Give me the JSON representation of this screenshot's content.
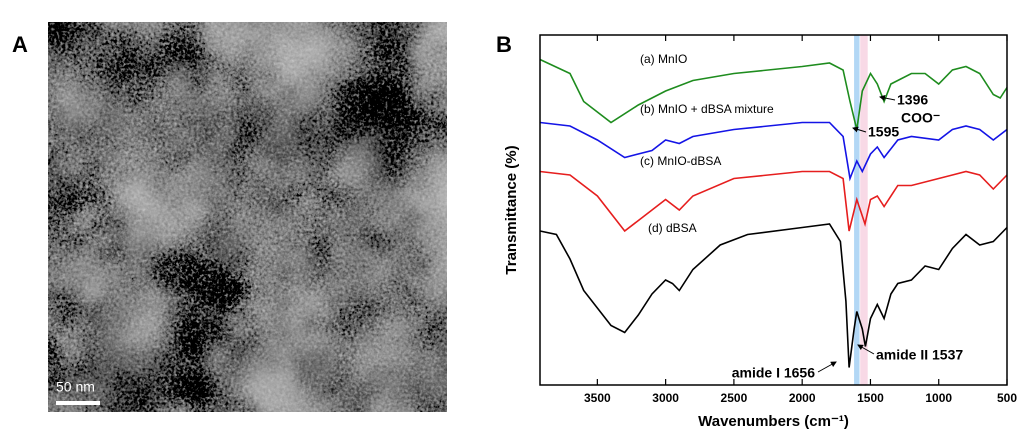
{
  "panel_labels": [
    "A",
    "B"
  ],
  "scale_bar": "50 nm",
  "chart_data": {
    "type": "line",
    "x_label": "Wavenumbers (cm⁻¹)",
    "y_label": "Transmittance (%)",
    "xlim": [
      3920,
      500
    ],
    "xticks": [
      3500,
      3000,
      2500,
      2000,
      1500,
      1000,
      500
    ],
    "ylim": [
      0,
      100
    ],
    "highlights": [
      {
        "from": 1620,
        "to": 1580,
        "color": "#9fcdf2"
      },
      {
        "from": 1575,
        "to": 1520,
        "color": "#f6cfe0"
      }
    ],
    "annotations": [
      "1396",
      "COO⁻",
      "1595",
      "amide I 1656",
      "amide II 1537"
    ],
    "series": [
      {
        "name": "(a) MnIO",
        "color": "#1e8c1e",
        "x": [
          3920,
          3700,
          3600,
          3400,
          3200,
          3000,
          2800,
          2500,
          2000,
          1800,
          1700,
          1650,
          1600,
          1560,
          1500,
          1450,
          1400,
          1350,
          1200,
          1100,
          1000,
          900,
          800,
          700,
          600,
          550,
          500
        ],
        "values": [
          93,
          89,
          81,
          75,
          80,
          84,
          87,
          89,
          91,
          92,
          90,
          81,
          73,
          84,
          89,
          86,
          81,
          86,
          89,
          89,
          86,
          90,
          91,
          89,
          83,
          82,
          85
        ]
      },
      {
        "name": "(b) MnIO + dBSA mixture",
        "color": "#1414e6",
        "x": [
          3920,
          3700,
          3500,
          3300,
          3100,
          3000,
          2900,
          2800,
          2500,
          2000,
          1800,
          1700,
          1650,
          1600,
          1560,
          1500,
          1450,
          1400,
          1300,
          1200,
          1000,
          900,
          800,
          700,
          600,
          500
        ],
        "values": [
          75,
          74,
          70,
          65,
          67,
          70,
          69,
          71,
          73,
          75,
          75,
          71,
          59,
          64,
          61,
          66,
          68,
          65,
          70,
          71,
          70,
          73,
          74,
          73,
          70,
          73
        ]
      },
      {
        "name": "(c) MnIO-dBSA",
        "color": "#e61e1e",
        "x": [
          3920,
          3700,
          3500,
          3300,
          3100,
          3000,
          2900,
          2800,
          2500,
          2000,
          1800,
          1700,
          1656,
          1600,
          1540,
          1500,
          1450,
          1400,
          1300,
          1200,
          1000,
          900,
          800,
          700,
          600,
          500
        ],
        "values": [
          61,
          60,
          54,
          44,
          50,
          53,
          50,
          54,
          59,
          61,
          61,
          59,
          44,
          53,
          46,
          53,
          54,
          51,
          57,
          57,
          59,
          60,
          61,
          60,
          56,
          60
        ]
      },
      {
        "name": "(d) dBSA",
        "color": "#000000",
        "x": [
          3920,
          3800,
          3700,
          3600,
          3400,
          3300,
          3200,
          3100,
          3000,
          2950,
          2900,
          2800,
          2600,
          2400,
          2000,
          1800,
          1720,
          1680,
          1656,
          1620,
          1600,
          1560,
          1537,
          1500,
          1450,
          1400,
          1350,
          1300,
          1200,
          1100,
          1000,
          900,
          800,
          700,
          600,
          500
        ],
        "values": [
          44,
          43,
          36,
          27,
          17,
          15,
          20,
          26,
          30,
          29,
          27,
          33,
          40,
          43,
          45,
          46,
          41,
          24,
          5,
          16,
          21,
          16,
          11,
          19,
          23,
          19,
          26,
          29,
          30,
          34,
          33,
          39,
          43,
          40,
          41,
          45
        ]
      }
    ]
  }
}
